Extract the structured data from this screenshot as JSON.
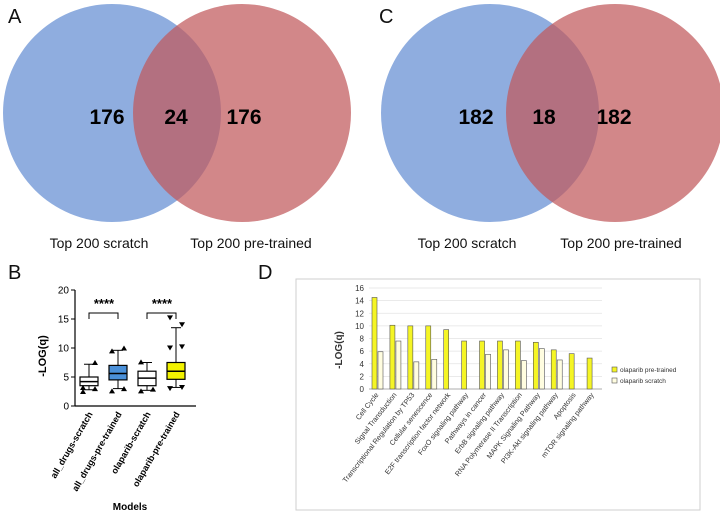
{
  "panels": {
    "A": {
      "letter": "A",
      "left_count": "176",
      "overlap_count": "24",
      "right_count": "176",
      "left_label": "Top 200 scratch",
      "right_label": "Top 200 pre-trained"
    },
    "C": {
      "letter": "C",
      "left_count": "182",
      "overlap_count": "18",
      "right_count": "182",
      "left_label": "Top 200 scratch",
      "right_label": "Top 200 pre-trained"
    },
    "B": {
      "letter": "B",
      "ylabel": "-LOG(q)",
      "xlabel": "Models",
      "significance": [
        "****",
        "****"
      ]
    },
    "D": {
      "letter": "D",
      "ylabel": "-LOG(q)"
    }
  },
  "colors": {
    "venn_left": "#7b9fd9",
    "venn_right": "#c0595c",
    "box_scratch": "#ffffff",
    "box_alldrugs_pre": "#4a90d9",
    "box_olaparib_pre": "#f2f200",
    "bar_pretrained": "#f5f525",
    "bar_scratch": "#fffde0"
  },
  "chart_data": [
    {
      "type": "box",
      "categories": [
        "all_drugs-scratch",
        "all_drugs-pre-trained",
        "olaparib-scratch",
        "olaparib-pre-trained"
      ],
      "ylabel": "-LOG(q)",
      "xlabel": "Models",
      "ylim": [
        0,
        20
      ],
      "yticks": [
        0,
        5,
        10,
        15,
        20
      ],
      "boxes": [
        {
          "min": 2.8,
          "q1": 3.5,
          "median": 4.2,
          "q3": 5.0,
          "max": 7.2
        },
        {
          "min": 3.0,
          "q1": 4.5,
          "median": 5.6,
          "q3": 7.0,
          "max": 9.6
        },
        {
          "min": 2.7,
          "q1": 3.5,
          "median": 4.8,
          "q3": 6.0,
          "max": 7.5
        },
        {
          "min": 3.2,
          "q1": 4.6,
          "median": 6.0,
          "q3": 7.5,
          "max": 13.5
        }
      ],
      "outliers": [
        [
          2.5,
          3.0,
          3.2,
          7.5
        ],
        [
          2.6,
          3.0,
          9.5,
          10.0
        ],
        [
          2.6,
          2.9,
          7.6
        ],
        [
          3.0,
          3.2,
          10.0,
          10.2,
          15.2,
          14.0
        ]
      ]
    },
    {
      "type": "bar",
      "categories": [
        "Cell Cycle",
        "Signal Transduction",
        "Transcriptional Regulation by TP53",
        "Cellular senescence",
        "E2F transcription factor network",
        "FoxO signaling pathway",
        "Pathways in cancer",
        "ErbB signaling pathway",
        "RNA Polymerase II Transcription",
        "MAPK Signaling Pathway",
        "PI3K-Akt signaling pathway",
        "Apoptosis",
        "mTOR signaling pathway"
      ],
      "ylim": [
        0,
        16
      ],
      "yticks": [
        0,
        2,
        4,
        6,
        8,
        10,
        12,
        14,
        16
      ],
      "ylabel": "-LOG(q)",
      "series": [
        {
          "name": "olaparib pre-trained",
          "values": [
            14.5,
            10.1,
            10.0,
            10.0,
            9.4,
            7.6,
            7.6,
            7.6,
            7.6,
            7.4,
            6.2,
            5.6,
            4.9
          ]
        },
        {
          "name": "olaparib scratch",
          "values": [
            5.9,
            7.6,
            4.3,
            4.7,
            null,
            null,
            5.5,
            6.2,
            4.5,
            6.4,
            4.6,
            null,
            null
          ]
        }
      ]
    }
  ]
}
